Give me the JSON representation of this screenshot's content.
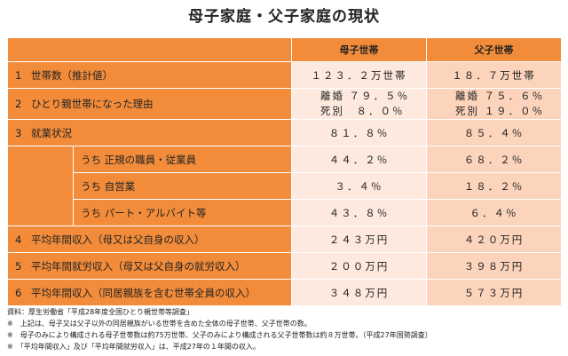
{
  "title": "母子家庭・父子家庭の現状",
  "headers": {
    "mother": "母子世帯",
    "father": "父子世帯"
  },
  "rows": [
    {
      "num": "1",
      "label": "世帯数（推計値）",
      "mother": "１２３．２万世帯",
      "father": "１８．７万世帯"
    },
    {
      "num": "2",
      "label": "ひとり親世帯になった理由",
      "mother_lines": [
        "離婚 ７９．５％",
        "死別　８．０％"
      ],
      "father_lines": [
        "離婚 ７５．６％",
        "死別 １９．０％"
      ]
    },
    {
      "num": "3",
      "label": "就業状況",
      "mother": "８１．８％",
      "father": "８５．４％"
    },
    {
      "label": "うち 正規の職員・従業員",
      "mother": "４４．２％",
      "father": "６８．２％"
    },
    {
      "label": "うち 自営業",
      "mother": "３．４％",
      "father": "１８．２％"
    },
    {
      "label": "うち パート・アルバイト等",
      "mother": "４３．８％",
      "father": "６．４％"
    },
    {
      "num": "4",
      "label": "平均年間収入（母又は父自身の収入）",
      "mother": "２４３万円",
      "father": "４２０万円"
    },
    {
      "num": "5",
      "label": "平均年間就労収入（母又は父自身の就労収入）",
      "mother": "２００万円",
      "father": "３９８万円"
    },
    {
      "num": "6",
      "label": "平均年間収入（同居親族を含む世帯全員の収入）",
      "mother": "３４８万円",
      "father": "５７３万円"
    }
  ],
  "notes": [
    "資料：厚生労働省「平成28年度全国ひとり親世帯等調査」",
    "※　上記は、母子又は父子以外の同居親族がいる世帯を含めた全体の母子世帯、父子世帯の数。",
    "※　母子のみにより構成される母子世帯数は約75万世帯、父子のみにより構成される父子世帯数は約８万世帯。（平成27年国勢調査）",
    "※　「平均年間収入」及び「平均年間就労収入」は、平成27年の１年間の収入。"
  ]
}
